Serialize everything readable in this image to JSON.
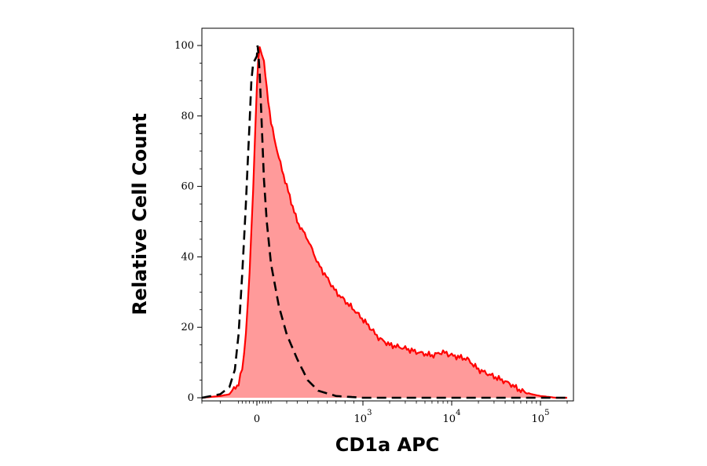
{
  "chart_data": {
    "type": "area",
    "xlabel": "CD1a APC",
    "ylabel": "Relative Cell Count",
    "x_scale": "biexponential",
    "x_ticks": [
      {
        "value": 0,
        "base": "0",
        "exp": ""
      },
      {
        "value": 1000,
        "base": "10",
        "exp": "3"
      },
      {
        "value": 10000,
        "base": "10",
        "exp": "4"
      },
      {
        "value": 100000,
        "base": "10",
        "exp": "5"
      }
    ],
    "y_ticks": [
      "0",
      "20",
      "40",
      "60",
      "80",
      "100"
    ],
    "ylim": [
      0,
      100
    ],
    "grid": false,
    "legend": "none",
    "series": [
      {
        "style": "filled",
        "color": "#ff0000",
        "fill": "#ff9a9a",
        "points": [
          [
            -300,
            0
          ],
          [
            -200,
            0.5
          ],
          [
            -150,
            1
          ],
          [
            -100,
            4
          ],
          [
            -80,
            8
          ],
          [
            -60,
            18
          ],
          [
            -40,
            35
          ],
          [
            -20,
            60
          ],
          [
            0,
            88
          ],
          [
            10,
            96
          ],
          [
            20,
            100
          ],
          [
            35,
            98
          ],
          [
            50,
            95
          ],
          [
            70,
            88
          ],
          [
            100,
            78
          ],
          [
            150,
            68
          ],
          [
            200,
            60
          ],
          [
            300,
            50
          ],
          [
            400,
            45
          ],
          [
            500,
            38
          ],
          [
            700,
            30
          ],
          [
            900,
            25
          ],
          [
            1200,
            20
          ],
          [
            1500,
            17
          ],
          [
            2000,
            15
          ],
          [
            3000,
            14
          ],
          [
            4000,
            13
          ],
          [
            6000,
            12
          ],
          [
            8000,
            13
          ],
          [
            10000,
            12
          ],
          [
            15000,
            11
          ],
          [
            20000,
            8
          ],
          [
            30000,
            6
          ],
          [
            45000,
            4
          ],
          [
            60000,
            2
          ],
          [
            80000,
            1
          ],
          [
            100000,
            0.5
          ],
          [
            150000,
            0
          ],
          [
            200000,
            0
          ]
        ]
      },
      {
        "style": "dashed",
        "color": "#000000",
        "points": [
          [
            -300,
            0
          ],
          [
            -200,
            1
          ],
          [
            -150,
            3
          ],
          [
            -120,
            8
          ],
          [
            -100,
            18
          ],
          [
            -80,
            35
          ],
          [
            -60,
            55
          ],
          [
            -40,
            78
          ],
          [
            -30,
            90
          ],
          [
            -20,
            95
          ],
          [
            -10,
            96
          ],
          [
            0,
            97
          ],
          [
            5,
            100
          ],
          [
            10,
            98
          ],
          [
            20,
            92
          ],
          [
            30,
            82
          ],
          [
            40,
            72
          ],
          [
            50,
            62
          ],
          [
            70,
            50
          ],
          [
            100,
            38
          ],
          [
            150,
            26
          ],
          [
            200,
            18
          ],
          [
            300,
            11
          ],
          [
            400,
            5
          ],
          [
            500,
            2
          ],
          [
            700,
            0.5
          ],
          [
            1000,
            0
          ],
          [
            200000,
            0
          ]
        ]
      }
    ]
  }
}
